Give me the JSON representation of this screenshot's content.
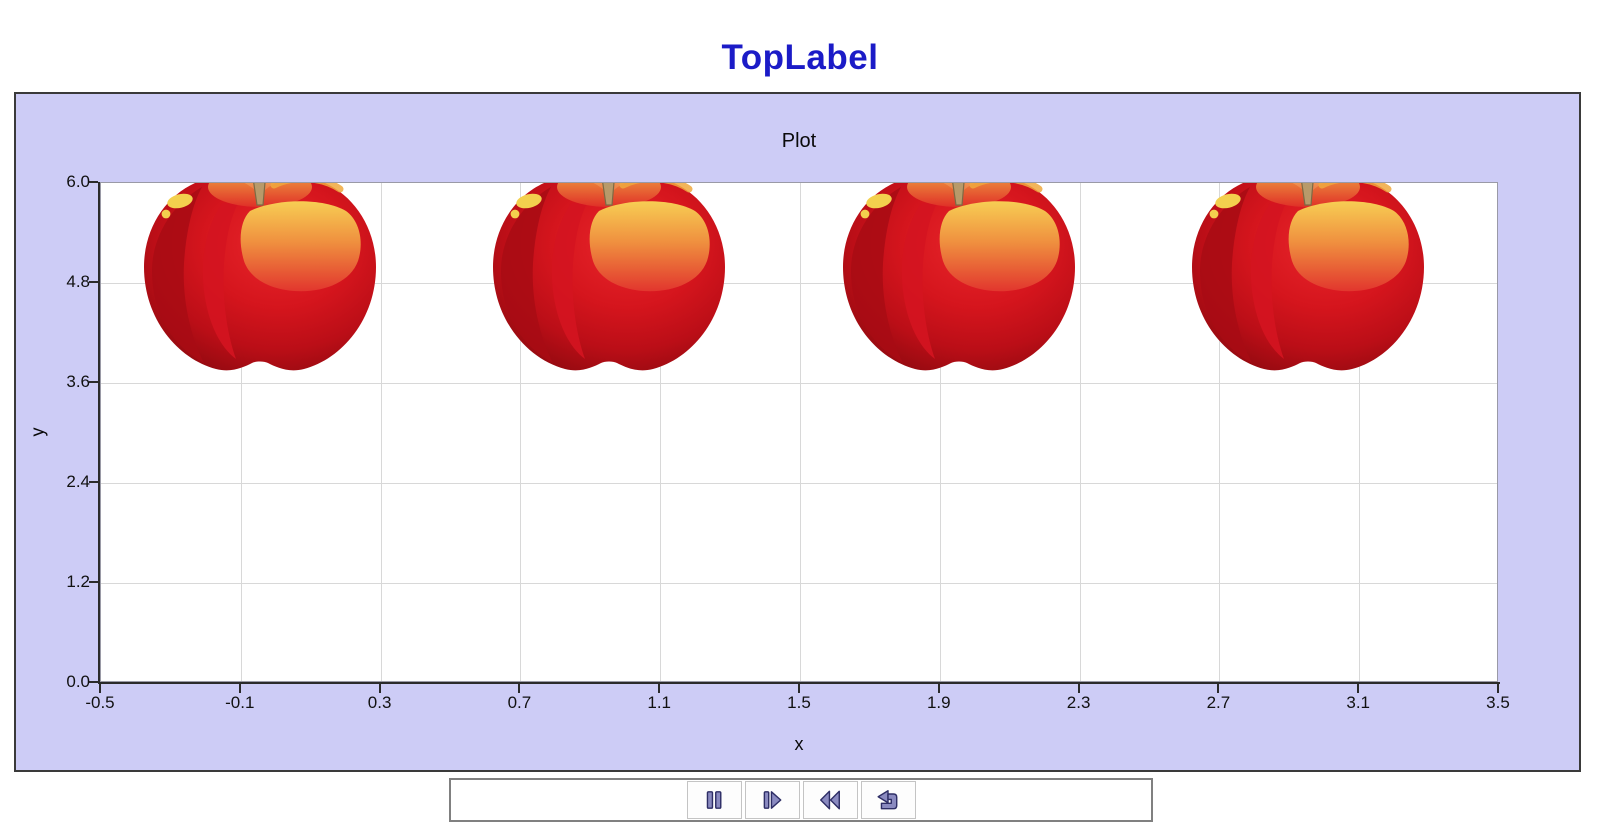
{
  "page": {
    "title": "TopLabel"
  },
  "chart_data": {
    "type": "scatter",
    "title": "Plot",
    "xlabel": "x",
    "ylabel": "y",
    "marker": "apple-image",
    "x": [
      0,
      1,
      2,
      3
    ],
    "y": [
      4.8,
      4.8,
      4.8,
      4.8
    ],
    "xlim": [
      -0.5,
      3.5
    ],
    "ylim": [
      0.0,
      6.0
    ],
    "x_tick_labels": [
      "-0.5",
      "-0.1",
      "0.3",
      "0.7",
      "1.1",
      "1.5",
      "1.9",
      "2.3",
      "2.7",
      "3.1",
      "3.5"
    ],
    "y_tick_labels": [
      "0.0",
      "1.2",
      "2.4",
      "3.6",
      "4.8",
      "6.0"
    ],
    "grid": true,
    "legend": false
  },
  "toolbar": {
    "buttons": [
      {
        "name": "pause",
        "icon": "pause-icon"
      },
      {
        "name": "step-forward",
        "icon": "step-forward-icon"
      },
      {
        "name": "rewind",
        "icon": "rewind-icon"
      },
      {
        "name": "return",
        "icon": "return-arrow-icon"
      }
    ]
  },
  "colors": {
    "title_blue": "#1b1bc7",
    "panel_bg": "#cdccf6",
    "plot_bg": "#ffffff",
    "gridline": "#d8d8d8",
    "axis": "#2b2b2b",
    "apple_red": "#cc1018",
    "icon_fill": "#8a8ac0",
    "icon_outline": "#2e2e66"
  }
}
